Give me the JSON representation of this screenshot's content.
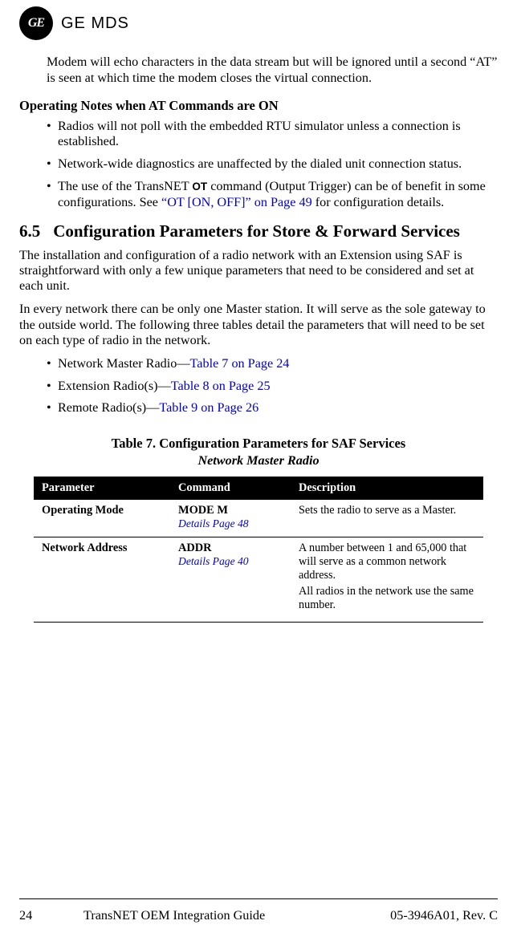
{
  "brand": {
    "monogram": "GE",
    "text": "GE MDS"
  },
  "intro_para": "Modem will echo characters in the data stream but will be ignored until a second “AT” is seen at which time the modem closes the virtual connection.",
  "subhead": "Operating Notes when AT Commands are ON",
  "bullets_a": {
    "b0": "Radios will not poll with the embedded RTU simulator unless a connection is established.",
    "b1": "Network-wide diagnostics are unaffected by the dialed unit connection status.",
    "b2_pre": "The use of the TransNET ",
    "b2_sc": "OT",
    "b2_mid": " command (Output Trigger) can be of benefit in some configurations. See ",
    "b2_link": "“OT [ON, OFF]” on Page 49",
    "b2_post": " for configuration details."
  },
  "section": {
    "num": "6.5",
    "title": "Configuration Parameters for Store & Forward Services"
  },
  "para1": "The installation and configuration of a radio network with an Extension using SAF is straightforward with only a few unique parameters that need to be considered and set at each unit.",
  "para2": "In every network there can be only one Master station. It will serve as the sole gateway to the outside world. The following three tables detail the parameters that will need to be set on each type of radio in the network.",
  "bullets_b": {
    "b0_pre": "Network Master Radio—",
    "b0_link": "Table 7 on Page 24",
    "b1_pre": "Extension Radio(s)—",
    "b1_link": "Table 8 on Page 25",
    "b2_pre": "Remote Radio(s)—",
    "b2_link": "Table 9 on Page 26"
  },
  "table": {
    "caption": "Table 7. Configuration Parameters for SAF Services",
    "subtitle": "Network Master Radio",
    "headers": {
      "h0": "Parameter",
      "h1": "Command",
      "h2": "Description"
    },
    "rows": {
      "r0": {
        "param": "Operating Mode",
        "cmd": "MODE M",
        "detail": "Details Page 48",
        "desc1": "Sets the radio to serve as a Master."
      },
      "r1": {
        "param": "Network Address",
        "cmd": "ADDR",
        "detail": "Details Page 40",
        "desc1": "A number between 1 and 65,000 that will serve as a common network address.",
        "desc2": "All radios in the network use the same number."
      }
    }
  },
  "footer": {
    "page": "24",
    "title": "TransNET OEM Integration Guide",
    "rev": "05-3946A01, Rev. C"
  }
}
